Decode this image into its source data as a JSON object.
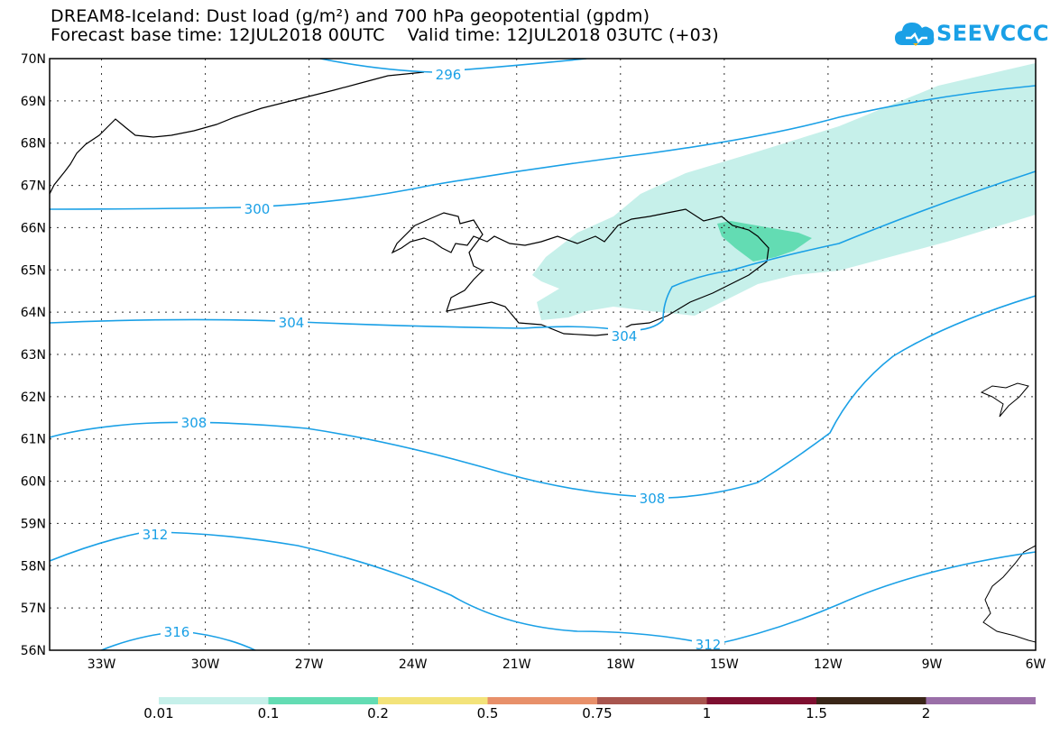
{
  "title": {
    "line1": "DREAM8-Iceland: Dust load (g/m²) and 700 hPa geopotential (gpdm)",
    "line2": "Forecast base time: 12JUL2018 00UTC    Valid time: 12JUL2018 03UTC (+03)"
  },
  "logo": {
    "text": "SEEVCCC",
    "icon": "cloud-icon",
    "color": "#1aa0e6"
  },
  "map": {
    "lat_range": [
      56,
      70
    ],
    "lon_range": [
      -34.5,
      -6
    ],
    "lat_labels": [
      "70N",
      "69N",
      "68N",
      "67N",
      "66N",
      "65N",
      "64N",
      "63N",
      "62N",
      "61N",
      "60N",
      "59N",
      "58N",
      "57N",
      "56N"
    ],
    "lon_labels": [
      "33W",
      "30W",
      "27W",
      "24W",
      "21W",
      "18W",
      "15W",
      "12W",
      "9W",
      "6W"
    ],
    "gridlines": "dotted",
    "contour_color": "#1aa0e6",
    "contour_labels": [
      "296",
      "300",
      "304",
      "304",
      "308",
      "308",
      "312",
      "312",
      "316"
    ]
  },
  "legend": {
    "colors": [
      "#c6f0ea",
      "#63dcb3",
      "#f3e37a",
      "#e8906a",
      "#a8554e",
      "#7e0f30",
      "#3a2618",
      "#9a6fa8"
    ],
    "labels": [
      "0.01",
      "0.1",
      "0.2",
      "0.5",
      "0.75",
      "1",
      "1.5",
      "2"
    ]
  }
}
